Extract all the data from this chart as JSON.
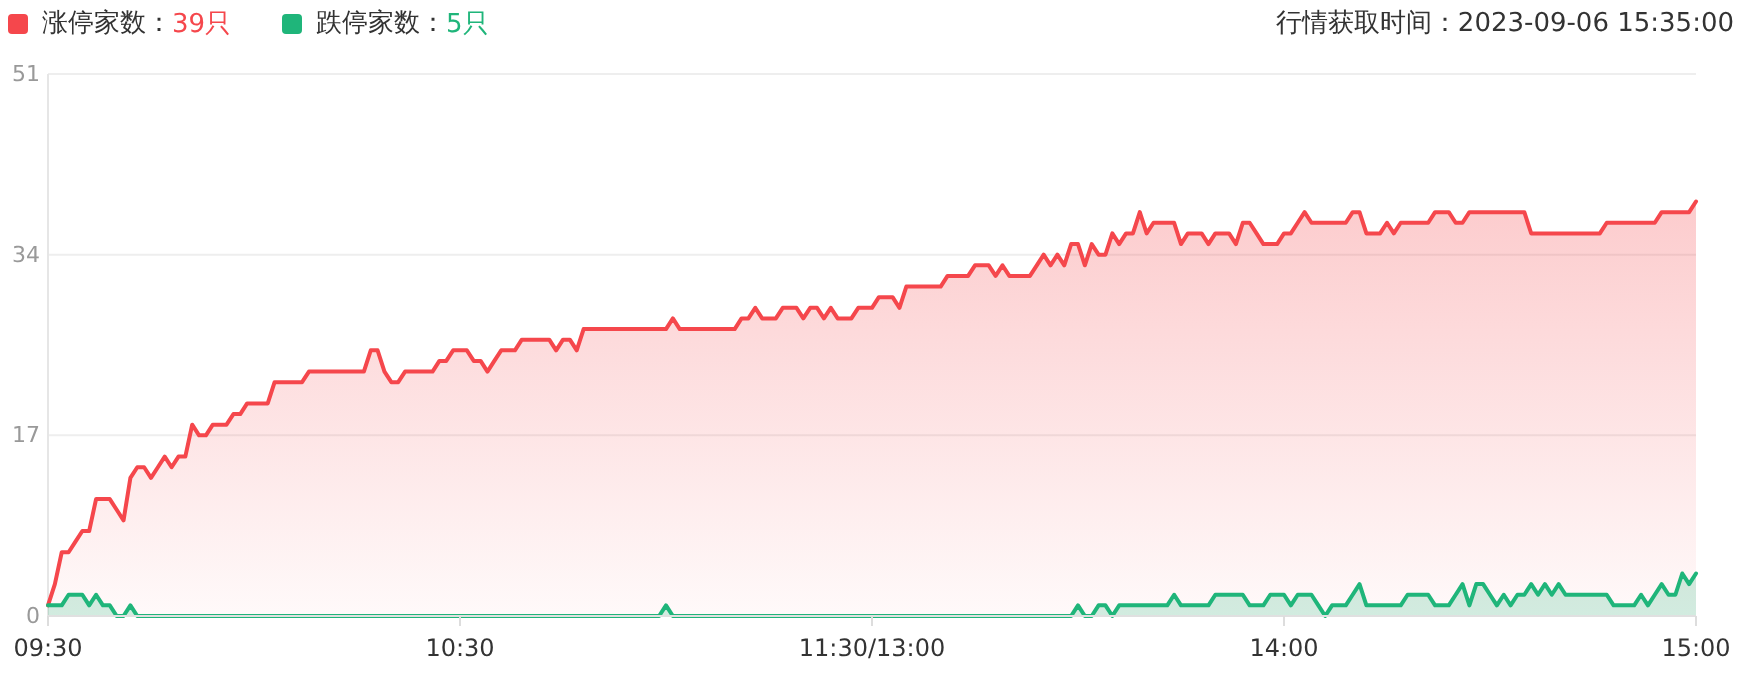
{
  "chart_data": {
    "type": "area",
    "annotations": [
      "行情获取时间：2023-09-06 15:35:00"
    ],
    "categories": [
      "09:30",
      null,
      null,
      null,
      null,
      null,
      null,
      null,
      null,
      null,
      null,
      null,
      null,
      null,
      null,
      null,
      null,
      null,
      null,
      null,
      null,
      null,
      null,
      null,
      null,
      null,
      null,
      null,
      null,
      null,
      null,
      null,
      null,
      null,
      null,
      null,
      null,
      null,
      null,
      null,
      null,
      null,
      null,
      null,
      null,
      null,
      null,
      null,
      null,
      null,
      null,
      null,
      null,
      null,
      null,
      null,
      null,
      null,
      null,
      null,
      "10:30",
      null,
      null,
      null,
      null,
      null,
      null,
      null,
      null,
      null,
      null,
      null,
      null,
      null,
      null,
      null,
      null,
      null,
      null,
      null,
      null,
      null,
      null,
      null,
      null,
      null,
      null,
      null,
      null,
      null,
      null,
      null,
      null,
      null,
      null,
      null,
      null,
      null,
      null,
      null,
      null,
      null,
      null,
      null,
      null,
      null,
      null,
      null,
      null,
      null,
      null,
      null,
      null,
      null,
      null,
      null,
      null,
      null,
      null,
      null,
      "11:30/13:00",
      null,
      null,
      null,
      null,
      null,
      null,
      null,
      null,
      null,
      null,
      null,
      null,
      null,
      null,
      null,
      null,
      null,
      null,
      null,
      null,
      null,
      null,
      null,
      null,
      null,
      null,
      null,
      null,
      null,
      null,
      null,
      null,
      null,
      null,
      null,
      null,
      null,
      null,
      null,
      null,
      null,
      null,
      null,
      null,
      null,
      null,
      null,
      null,
      null,
      null,
      null,
      null,
      null,
      null,
      null,
      null,
      null,
      null,
      null,
      "14:00",
      null,
      null,
      null,
      null,
      null,
      null,
      null,
      null,
      null,
      null,
      null,
      null,
      null,
      null,
      null,
      null,
      null,
      null,
      null,
      null,
      null,
      null,
      null,
      null,
      null,
      null,
      null,
      null,
      null,
      null,
      null,
      null,
      null,
      null,
      null,
      null,
      null,
      null,
      null,
      null,
      null,
      null,
      null,
      null,
      null,
      null,
      null,
      null,
      null,
      null,
      null,
      null,
      null,
      null,
      null,
      null,
      null,
      null,
      null,
      "15:00"
    ],
    "ylim": [
      0,
      51
    ],
    "yticks": [
      0,
      17,
      34,
      51
    ],
    "grid": "y",
    "legend": "top left",
    "marker": "none",
    "line_style": "solid",
    "series": [
      {
        "name": "涨停家数：39只",
        "color": "#f5474c",
        "values": [
          1,
          3,
          6,
          6,
          7,
          8,
          8,
          11,
          11,
          11,
          10,
          9,
          13,
          14,
          14,
          13,
          14,
          15,
          14,
          15,
          15,
          18,
          17,
          17,
          18,
          18,
          18,
          19,
          19,
          20,
          20,
          20,
          20,
          22,
          22,
          22,
          22,
          22,
          23,
          23,
          23,
          23,
          23,
          23,
          23,
          23,
          23,
          25,
          25,
          23,
          22,
          22,
          23,
          23,
          23,
          23,
          23,
          24,
          24,
          25,
          25,
          25,
          24,
          24,
          23,
          24,
          25,
          25,
          25,
          26,
          26,
          26,
          26,
          26,
          25,
          26,
          26,
          25,
          27,
          27,
          27,
          27,
          27,
          27,
          27,
          27,
          27,
          27,
          27,
          27,
          27,
          28,
          27,
          27,
          27,
          27,
          27,
          27,
          27,
          27,
          27,
          28,
          28,
          29,
          28,
          28,
          28,
          29,
          29,
          29,
          28,
          29,
          29,
          28,
          29,
          28,
          28,
          28,
          29,
          29,
          29,
          30,
          30,
          30,
          29,
          31,
          31,
          31,
          31,
          31,
          31,
          32,
          32,
          32,
          32,
          33,
          33,
          33,
          32,
          33,
          32,
          32,
          32,
          32,
          33,
          34,
          33,
          34,
          33,
          35,
          35,
          33,
          35,
          34,
          34,
          36,
          35,
          36,
          36,
          38,
          36,
          37,
          37,
          37,
          37,
          35,
          36,
          36,
          36,
          35,
          36,
          36,
          36,
          35,
          37,
          37,
          36,
          35,
          35,
          35,
          36,
          36,
          37,
          38,
          37,
          37,
          37,
          37,
          37,
          37,
          38,
          38,
          36,
          36,
          36,
          37,
          36,
          37,
          37,
          37,
          37,
          37,
          38,
          38,
          38,
          37,
          37,
          38,
          38,
          38,
          38,
          38,
          38,
          38,
          38,
          38,
          36,
          36,
          36,
          36,
          36,
          36,
          36,
          36,
          36,
          36,
          36,
          37,
          37,
          37,
          37,
          37,
          37,
          37,
          37,
          38,
          38,
          38,
          38,
          38,
          39
        ]
      },
      {
        "name": "跌停家数：5只",
        "color": "#1fb57a",
        "values": [
          1,
          1,
          1,
          2,
          2,
          2,
          1,
          2,
          1,
          1,
          0,
          0,
          1,
          0,
          0,
          0,
          0,
          0,
          0,
          0,
          0,
          0,
          0,
          0,
          0,
          0,
          0,
          0,
          0,
          0,
          0,
          0,
          0,
          0,
          0,
          0,
          0,
          0,
          0,
          0,
          0,
          0,
          0,
          0,
          0,
          0,
          0,
          0,
          0,
          0,
          0,
          0,
          0,
          0,
          0,
          0,
          0,
          0,
          0,
          0,
          0,
          0,
          0,
          0,
          0,
          0,
          0,
          0,
          0,
          0,
          0,
          0,
          0,
          0,
          0,
          0,
          0,
          0,
          0,
          0,
          0,
          0,
          0,
          0,
          0,
          0,
          0,
          0,
          0,
          0,
          1,
          0,
          0,
          0,
          0,
          0,
          0,
          0,
          0,
          0,
          0,
          0,
          0,
          0,
          0,
          0,
          0,
          0,
          0,
          0,
          0,
          0,
          0,
          0,
          0,
          0,
          0,
          0,
          0,
          0,
          0,
          0,
          0,
          0,
          0,
          0,
          0,
          0,
          0,
          0,
          0,
          0,
          0,
          0,
          0,
          0,
          0,
          0,
          0,
          0,
          0,
          0,
          0,
          0,
          0,
          0,
          0,
          0,
          0,
          0,
          1,
          0,
          0,
          1,
          1,
          0,
          1,
          1,
          1,
          1,
          1,
          1,
          1,
          1,
          2,
          1,
          1,
          1,
          1,
          1,
          2,
          2,
          2,
          2,
          2,
          1,
          1,
          1,
          2,
          2,
          2,
          1,
          2,
          2,
          2,
          1,
          0,
          1,
          1,
          1,
          2,
          3,
          1,
          1,
          1,
          1,
          1,
          1,
          2,
          2,
          2,
          2,
          1,
          1,
          1,
          2,
          3,
          1,
          3,
          3,
          2,
          1,
          2,
          1,
          2,
          2,
          3,
          2,
          3,
          2,
          3,
          2,
          2,
          2,
          2,
          2,
          2,
          2,
          1,
          1,
          1,
          1,
          2,
          1,
          2,
          3,
          2,
          2,
          4,
          3,
          4
        ]
      }
    ]
  }
}
